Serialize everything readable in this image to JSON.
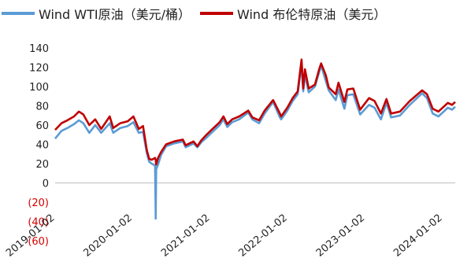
{
  "chart_data": {
    "type": "line",
    "title": "",
    "xlabel": "",
    "ylabel": "",
    "ylim": [
      -60,
      140
    ],
    "yticks": [
      140,
      120,
      100,
      80,
      60,
      40,
      20,
      0,
      -20,
      -40,
      -60
    ],
    "ytick_labels": [
      "140",
      "120",
      "100",
      "80",
      "60",
      "40",
      "20",
      "0",
      "(20)",
      "(40)",
      "(60)"
    ],
    "xticks": [
      "2019-01-02",
      "2020-01-02",
      "2021-01-02",
      "2022-01-02",
      "2023-01-02",
      "2024-01-02"
    ],
    "xlim": [
      "2019-01-02",
      "2024-03-01"
    ],
    "legend_position": "top",
    "grid": false,
    "series": [
      {
        "name": "Wind WTI原油（美元/桶）",
        "color": "#5b9bd5",
        "points": [
          [
            "2019-01-02",
            46
          ],
          [
            "2019-02-01",
            54
          ],
          [
            "2019-03-01",
            57
          ],
          [
            "2019-04-01",
            61
          ],
          [
            "2019-04-24",
            65
          ],
          [
            "2019-05-15",
            62
          ],
          [
            "2019-06-12",
            52
          ],
          [
            "2019-07-10",
            60
          ],
          [
            "2019-08-07",
            52
          ],
          [
            "2019-09-16",
            62
          ],
          [
            "2019-10-03",
            52
          ],
          [
            "2019-11-05",
            57
          ],
          [
            "2019-12-10",
            59
          ],
          [
            "2020-01-06",
            63
          ],
          [
            "2020-01-31",
            52
          ],
          [
            "2020-02-20",
            53
          ],
          [
            "2020-03-09",
            31
          ],
          [
            "2020-03-20",
            22
          ],
          [
            "2020-04-01",
            20
          ],
          [
            "2020-04-17",
            18
          ],
          [
            "2020-04-20",
            -37
          ],
          [
            "2020-04-22",
            14
          ],
          [
            "2020-05-01",
            19
          ],
          [
            "2020-05-15",
            29
          ],
          [
            "2020-06-08",
            38
          ],
          [
            "2020-07-15",
            41
          ],
          [
            "2020-08-26",
            43
          ],
          [
            "2020-09-08",
            37
          ],
          [
            "2020-10-15",
            41
          ],
          [
            "2020-11-02",
            37
          ],
          [
            "2020-11-20",
            42
          ],
          [
            "2020-12-15",
            47
          ],
          [
            "2021-01-08",
            52
          ],
          [
            "2021-02-15",
            60
          ],
          [
            "2021-03-05",
            66
          ],
          [
            "2021-03-23",
            58
          ],
          [
            "2021-04-15",
            63
          ],
          [
            "2021-05-18",
            66
          ],
          [
            "2021-06-30",
            73
          ],
          [
            "2021-07-19",
            66
          ],
          [
            "2021-08-20",
            62
          ],
          [
            "2021-09-15",
            72
          ],
          [
            "2021-10-25",
            84
          ],
          [
            "2021-11-26",
            68
          ],
          [
            "2021-12-02",
            66
          ],
          [
            "2021-12-31",
            75
          ],
          [
            "2022-01-25",
            85
          ],
          [
            "2022-02-18",
            92
          ],
          [
            "2022-03-08",
            123
          ],
          [
            "2022-03-16",
            95
          ],
          [
            "2022-03-24",
            112
          ],
          [
            "2022-04-11",
            94
          ],
          [
            "2022-05-10",
            100
          ],
          [
            "2022-05-30",
            115
          ],
          [
            "2022-06-08",
            122
          ],
          [
            "2022-06-30",
            106
          ],
          [
            "2022-07-14",
            96
          ],
          [
            "2022-08-16",
            86
          ],
          [
            "2022-08-29",
            97
          ],
          [
            "2022-09-26",
            77
          ],
          [
            "2022-10-10",
            91
          ],
          [
            "2022-11-07",
            92
          ],
          [
            "2022-12-09",
            71
          ],
          [
            "2023-01-20",
            81
          ],
          [
            "2023-02-15",
            78
          ],
          [
            "2023-03-17",
            66
          ],
          [
            "2023-04-12",
            83
          ],
          [
            "2023-05-04",
            68
          ],
          [
            "2023-06-15",
            70
          ],
          [
            "2023-07-31",
            81
          ],
          [
            "2023-09-27",
            93
          ],
          [
            "2023-10-20",
            88
          ],
          [
            "2023-11-16",
            72
          ],
          [
            "2023-12-13",
            69
          ],
          [
            "2024-01-26",
            78
          ],
          [
            "2024-02-15",
            76
          ],
          [
            "2024-03-01",
            79
          ]
        ]
      },
      {
        "name": "Wind 布伦特原油（美元）",
        "color": "#c00000",
        "points": [
          [
            "2019-01-02",
            55
          ],
          [
            "2019-02-01",
            62
          ],
          [
            "2019-03-01",
            65
          ],
          [
            "2019-04-01",
            69
          ],
          [
            "2019-04-24",
            74
          ],
          [
            "2019-05-15",
            71
          ],
          [
            "2019-06-12",
            60
          ],
          [
            "2019-07-10",
            66
          ],
          [
            "2019-08-07",
            56
          ],
          [
            "2019-09-16",
            69
          ],
          [
            "2019-10-03",
            57
          ],
          [
            "2019-11-05",
            62
          ],
          [
            "2019-12-10",
            64
          ],
          [
            "2020-01-06",
            69
          ],
          [
            "2020-01-31",
            56
          ],
          [
            "2020-02-20",
            59
          ],
          [
            "2020-03-09",
            34
          ],
          [
            "2020-03-20",
            25
          ],
          [
            "2020-04-01",
            24
          ],
          [
            "2020-04-17",
            26
          ],
          [
            "2020-04-20",
            24
          ],
          [
            "2020-04-22",
            19
          ],
          [
            "2020-05-01",
            26
          ],
          [
            "2020-05-15",
            32
          ],
          [
            "2020-06-08",
            40
          ],
          [
            "2020-07-15",
            43
          ],
          [
            "2020-08-26",
            45
          ],
          [
            "2020-09-08",
            39
          ],
          [
            "2020-10-15",
            43
          ],
          [
            "2020-11-02",
            38
          ],
          [
            "2020-11-20",
            44
          ],
          [
            "2020-12-15",
            50
          ],
          [
            "2021-01-08",
            55
          ],
          [
            "2021-02-15",
            63
          ],
          [
            "2021-03-05",
            69
          ],
          [
            "2021-03-23",
            61
          ],
          [
            "2021-04-15",
            66
          ],
          [
            "2021-05-18",
            69
          ],
          [
            "2021-06-30",
            75
          ],
          [
            "2021-07-19",
            68
          ],
          [
            "2021-08-20",
            65
          ],
          [
            "2021-09-15",
            75
          ],
          [
            "2021-10-25",
            86
          ],
          [
            "2021-11-26",
            72
          ],
          [
            "2021-12-02",
            69
          ],
          [
            "2021-12-31",
            78
          ],
          [
            "2022-01-25",
            88
          ],
          [
            "2022-02-18",
            95
          ],
          [
            "2022-03-08",
            128
          ],
          [
            "2022-03-16",
            98
          ],
          [
            "2022-03-24",
            118
          ],
          [
            "2022-04-11",
            98
          ],
          [
            "2022-05-10",
            102
          ],
          [
            "2022-05-30",
            118
          ],
          [
            "2022-06-08",
            124
          ],
          [
            "2022-06-30",
            112
          ],
          [
            "2022-07-14",
            99
          ],
          [
            "2022-08-16",
            92
          ],
          [
            "2022-08-29",
            104
          ],
          [
            "2022-09-26",
            84
          ],
          [
            "2022-10-10",
            97
          ],
          [
            "2022-11-07",
            98
          ],
          [
            "2022-12-09",
            76
          ],
          [
            "2023-01-20",
            88
          ],
          [
            "2023-02-15",
            85
          ],
          [
            "2023-03-17",
            72
          ],
          [
            "2023-04-12",
            87
          ],
          [
            "2023-05-04",
            72
          ],
          [
            "2023-06-15",
            74
          ],
          [
            "2023-07-31",
            85
          ],
          [
            "2023-09-27",
            96
          ],
          [
            "2023-10-20",
            92
          ],
          [
            "2023-11-16",
            77
          ],
          [
            "2023-12-13",
            74
          ],
          [
            "2024-01-26",
            83
          ],
          [
            "2024-02-15",
            81
          ],
          [
            "2024-03-01",
            84
          ]
        ]
      }
    ]
  }
}
